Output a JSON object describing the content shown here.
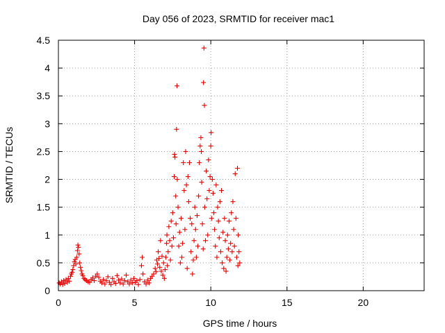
{
  "chart_data": {
    "type": "scatter",
    "title": "Day 056 of 2023, SRMTID for receiver mac1",
    "xlabel": "GPS time / hours",
    "ylabel": "SRMTID / TECUs",
    "xlim": [
      0,
      24
    ],
    "ylim": [
      0,
      4.5
    ],
    "xticks": [
      0,
      5,
      10,
      15,
      20
    ],
    "yticks": [
      0,
      0.5,
      1,
      1.5,
      2,
      2.5,
      3,
      3.5,
      4,
      4.5
    ],
    "xtick_labels": [
      "0",
      "5",
      "10",
      "15",
      "20"
    ],
    "ytick_labels": [
      "0",
      "0.5",
      "1",
      "1.5",
      "2",
      "2.5",
      "3",
      "3.5",
      "4",
      "4.5"
    ],
    "grid": true,
    "marker": "+",
    "color": "#e00000",
    "series": [
      {
        "name": "SRMTID",
        "points": [
          [
            0.05,
            0.14
          ],
          [
            0.12,
            0.12
          ],
          [
            0.2,
            0.16
          ],
          [
            0.28,
            0.11
          ],
          [
            0.35,
            0.18
          ],
          [
            0.42,
            0.13
          ],
          [
            0.5,
            0.2
          ],
          [
            0.58,
            0.15
          ],
          [
            0.65,
            0.22
          ],
          [
            0.72,
            0.17
          ],
          [
            0.8,
            0.26
          ],
          [
            0.85,
            0.3
          ],
          [
            0.9,
            0.33
          ],
          [
            0.95,
            0.38
          ],
          [
            1.0,
            0.45
          ],
          [
            1.05,
            0.52
          ],
          [
            1.1,
            0.56
          ],
          [
            1.15,
            0.48
          ],
          [
            1.2,
            0.6
          ],
          [
            1.25,
            0.72
          ],
          [
            1.28,
            0.82
          ],
          [
            1.32,
            0.78
          ],
          [
            1.36,
            0.66
          ],
          [
            1.4,
            0.5
          ],
          [
            1.45,
            0.42
          ],
          [
            1.5,
            0.36
          ],
          [
            1.55,
            0.3
          ],
          [
            1.6,
            0.27
          ],
          [
            1.68,
            0.22
          ],
          [
            1.75,
            0.2
          ],
          [
            1.85,
            0.18
          ],
          [
            1.95,
            0.16
          ],
          [
            2.05,
            0.15
          ],
          [
            2.15,
            0.2
          ],
          [
            2.25,
            0.23
          ],
          [
            2.35,
            0.18
          ],
          [
            2.45,
            0.26
          ],
          [
            2.55,
            0.3
          ],
          [
            2.65,
            0.24
          ],
          [
            2.75,
            0.17
          ],
          [
            2.85,
            0.14
          ],
          [
            2.95,
            0.2
          ],
          [
            3.05,
            0.12
          ],
          [
            3.15,
            0.18
          ],
          [
            3.25,
            0.25
          ],
          [
            3.35,
            0.15
          ],
          [
            3.45,
            0.11
          ],
          [
            3.55,
            0.22
          ],
          [
            3.65,
            0.16
          ],
          [
            3.75,
            0.13
          ],
          [
            3.85,
            0.27
          ],
          [
            3.95,
            0.19
          ],
          [
            4.05,
            0.14
          ],
          [
            4.15,
            0.21
          ],
          [
            4.25,
            0.12
          ],
          [
            4.35,
            0.18
          ],
          [
            4.45,
            0.28
          ],
          [
            4.55,
            0.16
          ],
          [
            4.65,
            0.12
          ],
          [
            4.75,
            0.19
          ],
          [
            4.85,
            0.14
          ],
          [
            4.95,
            0.22
          ],
          [
            5.05,
            0.15
          ],
          [
            5.15,
            0.18
          ],
          [
            5.25,
            0.11
          ],
          [
            5.35,
            0.2
          ],
          [
            5.45,
            0.45
          ],
          [
            5.5,
            0.6
          ],
          [
            5.55,
            0.3
          ],
          [
            5.65,
            0.16
          ],
          [
            5.75,
            0.12
          ],
          [
            5.85,
            0.19
          ],
          [
            5.95,
            0.14
          ],
          [
            6.05,
            0.22
          ],
          [
            6.15,
            0.26
          ],
          [
            6.25,
            0.3
          ],
          [
            6.35,
            0.4
          ],
          [
            6.4,
            0.34
          ],
          [
            6.45,
            0.55
          ],
          [
            6.5,
            0.48
          ],
          [
            6.55,
            0.7
          ],
          [
            6.6,
            0.58
          ],
          [
            6.65,
            0.42
          ],
          [
            6.7,
            0.9
          ],
          [
            6.75,
            0.35
          ],
          [
            6.8,
            0.62
          ],
          [
            6.85,
            0.28
          ],
          [
            6.9,
            0.5
          ],
          [
            6.95,
            0.22
          ],
          [
            7.0,
            0.38
          ],
          [
            7.05,
            0.6
          ],
          [
            7.1,
            0.85
          ],
          [
            7.12,
            1.0
          ],
          [
            7.15,
            0.45
          ],
          [
            7.2,
            0.7
          ],
          [
            7.25,
            1.15
          ],
          [
            7.3,
            0.9
          ],
          [
            7.35,
            0.55
          ],
          [
            7.4,
            1.25
          ],
          [
            7.45,
            0.8
          ],
          [
            7.5,
            1.4
          ],
          [
            7.55,
            0.95
          ],
          [
            7.6,
            2.05
          ],
          [
            7.62,
            2.45
          ],
          [
            7.65,
            2.4
          ],
          [
            7.7,
            1.7
          ],
          [
            7.72,
            1.2
          ],
          [
            7.75,
            2.9
          ],
          [
            7.78,
            3.68
          ],
          [
            7.8,
            2.0
          ],
          [
            7.85,
            1.5
          ],
          [
            7.9,
            0.8
          ],
          [
            7.95,
            1.05
          ],
          [
            8.0,
            0.5
          ],
          [
            8.05,
            1.3
          ],
          [
            8.1,
            0.6
          ],
          [
            8.15,
            0.85
          ],
          [
            8.2,
            2.3
          ],
          [
            8.25,
            1.8
          ],
          [
            8.3,
            1.1
          ],
          [
            8.35,
            2.5
          ],
          [
            8.4,
            1.9
          ],
          [
            8.45,
            0.4
          ],
          [
            8.5,
            2.05
          ],
          [
            8.55,
            1.6
          ],
          [
            8.6,
            2.3
          ],
          [
            8.65,
            1.3
          ],
          [
            8.7,
            0.7
          ],
          [
            8.75,
            1.2
          ],
          [
            8.8,
            0.3
          ],
          [
            8.85,
            0.55
          ],
          [
            8.9,
            0.9
          ],
          [
            8.95,
            1.5
          ],
          [
            9.0,
            1.1
          ],
          [
            9.05,
            0.6
          ],
          [
            9.1,
            1.35
          ],
          [
            9.15,
            0.8
          ],
          [
            9.2,
            1.7
          ],
          [
            9.25,
            2.3
          ],
          [
            9.3,
            2.6
          ],
          [
            9.35,
            2.75
          ],
          [
            9.38,
            2.5
          ],
          [
            9.4,
            1.95
          ],
          [
            9.45,
            1.2
          ],
          [
            9.5,
            0.75
          ],
          [
            9.52,
            3.74
          ],
          [
            9.55,
            4.36
          ],
          [
            9.58,
            3.33
          ],
          [
            9.6,
            1.5
          ],
          [
            9.65,
            0.9
          ],
          [
            9.7,
            2.15
          ],
          [
            9.75,
            1.65
          ],
          [
            9.8,
            1.0
          ],
          [
            9.85,
            2.35
          ],
          [
            9.9,
            1.8
          ],
          [
            9.95,
            2.05
          ],
          [
            10.0,
            2.6
          ],
          [
            10.02,
            2.84
          ],
          [
            10.05,
            1.3
          ],
          [
            10.1,
            2.0
          ],
          [
            10.15,
            1.75
          ],
          [
            10.2,
            1.4
          ],
          [
            10.25,
            1.1
          ],
          [
            10.3,
            0.8
          ],
          [
            10.35,
            1.9
          ],
          [
            10.4,
            0.6
          ],
          [
            10.45,
            1.5
          ],
          [
            10.5,
            1.25
          ],
          [
            10.55,
            0.95
          ],
          [
            10.6,
            1.6
          ],
          [
            10.65,
            0.7
          ],
          [
            10.7,
            1.8
          ],
          [
            10.75,
            0.5
          ],
          [
            10.8,
            1.05
          ],
          [
            10.85,
            0.4
          ],
          [
            10.9,
            1.3
          ],
          [
            10.95,
            0.9
          ],
          [
            11.0,
            0.35
          ],
          [
            11.05,
            0.6
          ],
          [
            11.1,
            1.0
          ],
          [
            11.15,
            0.75
          ],
          [
            11.2,
            1.25
          ],
          [
            11.25,
            0.55
          ],
          [
            11.3,
            0.85
          ],
          [
            11.35,
            1.4
          ],
          [
            11.4,
            0.7
          ],
          [
            11.45,
            1.6
          ],
          [
            11.5,
            1.1
          ],
          [
            11.55,
            0.8
          ],
          [
            11.6,
            2.1
          ],
          [
            11.65,
            1.3
          ],
          [
            11.7,
            0.6
          ],
          [
            11.75,
            2.2
          ],
          [
            11.78,
            0.45
          ],
          [
            11.8,
            1.0
          ],
          [
            11.85,
            0.7
          ],
          [
            11.9,
            0.5
          ]
        ]
      }
    ]
  }
}
